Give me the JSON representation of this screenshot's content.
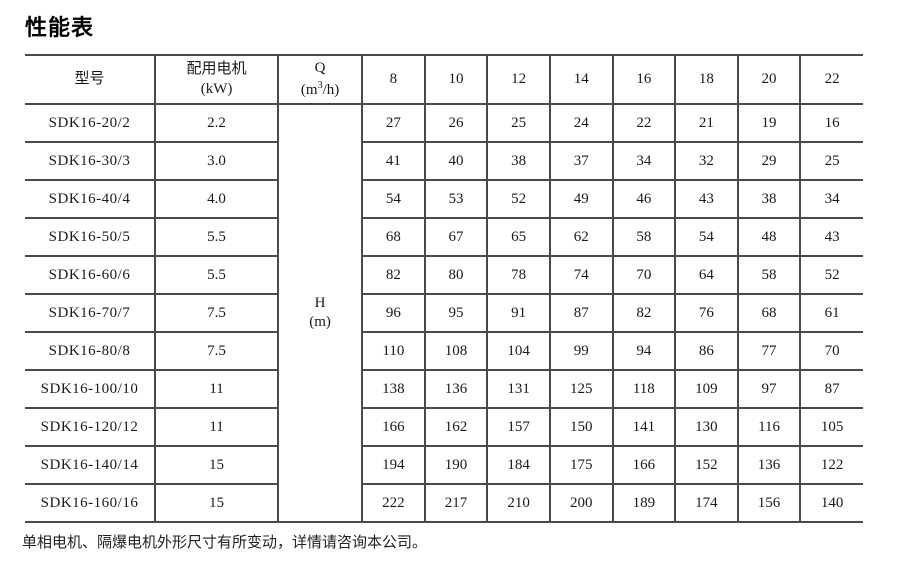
{
  "title": "性能表",
  "table": {
    "headers": {
      "model": "型号",
      "motor_line1": "配用电机",
      "motor_line2": "(kW)",
      "q_symbol": "Q",
      "q_unit_pre": "(m",
      "q_unit_sup": "3",
      "q_unit_post": "/h)",
      "flow_columns": [
        "8",
        "10",
        "12",
        "14",
        "16",
        "18",
        "20",
        "22"
      ]
    },
    "h_label_line1": "H",
    "h_label_line2": "(m)",
    "rows": [
      {
        "model": "SDK16-20/2",
        "kw": "2.2",
        "values": [
          "27",
          "26",
          "25",
          "24",
          "22",
          "21",
          "19",
          "16"
        ]
      },
      {
        "model": "SDK16-30/3",
        "kw": "3.0",
        "values": [
          "41",
          "40",
          "38",
          "37",
          "34",
          "32",
          "29",
          "25"
        ]
      },
      {
        "model": "SDK16-40/4",
        "kw": "4.0",
        "values": [
          "54",
          "53",
          "52",
          "49",
          "46",
          "43",
          "38",
          "34"
        ]
      },
      {
        "model": "SDK16-50/5",
        "kw": "5.5",
        "values": [
          "68",
          "67",
          "65",
          "62",
          "58",
          "54",
          "48",
          "43"
        ]
      },
      {
        "model": "SDK16-60/6",
        "kw": "5.5",
        "values": [
          "82",
          "80",
          "78",
          "74",
          "70",
          "64",
          "58",
          "52"
        ]
      },
      {
        "model": "SDK16-70/7",
        "kw": "7.5",
        "values": [
          "96",
          "95",
          "91",
          "87",
          "82",
          "76",
          "68",
          "61"
        ]
      },
      {
        "model": "SDK16-80/8",
        "kw": "7.5",
        "values": [
          "110",
          "108",
          "104",
          "99",
          "94",
          "86",
          "77",
          "70"
        ]
      },
      {
        "model": "SDK16-100/10",
        "kw": "11",
        "values": [
          "138",
          "136",
          "131",
          "125",
          "118",
          "109",
          "97",
          "87"
        ]
      },
      {
        "model": "SDK16-120/12",
        "kw": "11",
        "values": [
          "166",
          "162",
          "157",
          "150",
          "141",
          "130",
          "116",
          "105"
        ]
      },
      {
        "model": "SDK16-140/14",
        "kw": "15",
        "values": [
          "194",
          "190",
          "184",
          "175",
          "166",
          "152",
          "136",
          "122"
        ]
      },
      {
        "model": "SDK16-160/16",
        "kw": "15",
        "values": [
          "222",
          "217",
          "210",
          "200",
          "189",
          "174",
          "156",
          "140"
        ]
      }
    ]
  },
  "footer_note": "单相电机、隔爆电机外形尺寸有所变动，详情请咨询本公司。",
  "colors": {
    "border": "#4a4a4a",
    "text": "#1a1a1a",
    "background": "#ffffff"
  }
}
